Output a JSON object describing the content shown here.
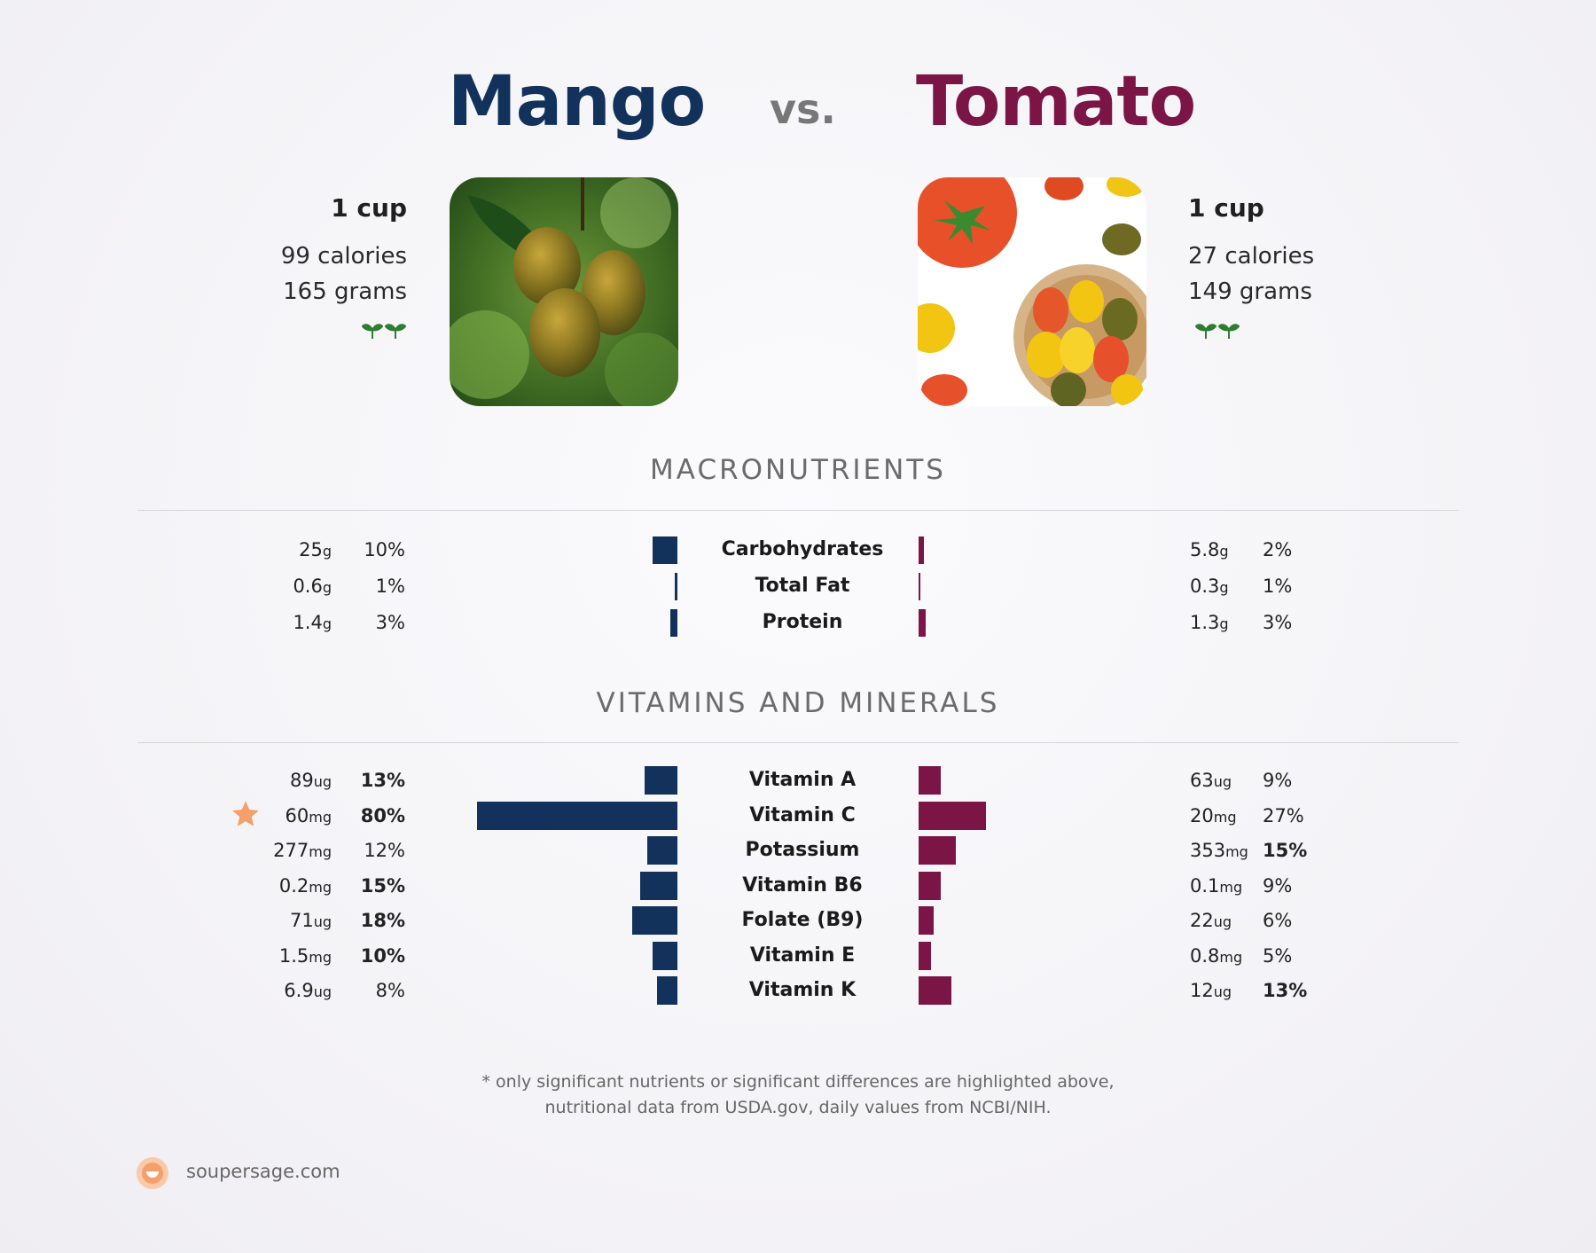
{
  "header": {
    "left_title": "Mango",
    "vs": "vs.",
    "right_title": "Tomato"
  },
  "left_food": {
    "serving": "1 cup",
    "calories": "99 calories",
    "grams": "165 grams",
    "icon": "plant-sprouts-icon"
  },
  "right_food": {
    "serving": "1 cup",
    "calories": "27 calories",
    "grams": "149 grams",
    "icon": "plant-sprouts-icon"
  },
  "sections": {
    "macros": "MACRONUTRIENTS",
    "vitamins": "VITAMINS AND MINERALS"
  },
  "colors": {
    "mango": "#13325b",
    "tomato": "#7b1546",
    "star": "#f5a06a",
    "sprout": "#2e7d32"
  },
  "chart_data": {
    "type": "bar",
    "series": [
      {
        "name": "Mango"
      },
      {
        "name": "Tomato"
      }
    ],
    "macros": [
      {
        "name": "Carbohydrates",
        "left_val": "25",
        "left_unit": "g",
        "left_pct": "10%",
        "left_pct_num": 10,
        "left_bold": false,
        "right_val": "5.8",
        "right_unit": "g",
        "right_pct": "2%",
        "right_pct_num": 2,
        "right_bold": false
      },
      {
        "name": "Total Fat",
        "left_val": "0.6",
        "left_unit": "g",
        "left_pct": "1%",
        "left_pct_num": 1,
        "left_bold": false,
        "right_val": "0.3",
        "right_unit": "g",
        "right_pct": "1%",
        "right_pct_num": 0.5,
        "right_bold": false
      },
      {
        "name": "Protein",
        "left_val": "1.4",
        "left_unit": "g",
        "left_pct": "3%",
        "left_pct_num": 3,
        "left_bold": false,
        "right_val": "1.3",
        "right_unit": "g",
        "right_pct": "3%",
        "right_pct_num": 3,
        "right_bold": false
      }
    ],
    "vitamins": [
      {
        "name": "Vitamin A",
        "left_val": "89",
        "left_unit": "ug",
        "left_pct": "13%",
        "left_pct_num": 13,
        "left_bold": true,
        "right_val": "63",
        "right_unit": "ug",
        "right_pct": "9%",
        "right_pct_num": 9,
        "right_bold": false
      },
      {
        "name": "Vitamin C",
        "left_val": "60",
        "left_unit": "mg",
        "left_pct": "80%",
        "left_pct_num": 80,
        "left_bold": true,
        "right_val": "20",
        "right_unit": "mg",
        "right_pct": "27%",
        "right_pct_num": 27,
        "right_bold": false,
        "star": true
      },
      {
        "name": "Potassium",
        "left_val": "277",
        "left_unit": "mg",
        "left_pct": "12%",
        "left_pct_num": 12,
        "left_bold": false,
        "right_val": "353",
        "right_unit": "mg",
        "right_pct": "15%",
        "right_pct_num": 15,
        "right_bold": true
      },
      {
        "name": "Vitamin B6",
        "left_val": "0.2",
        "left_unit": "mg",
        "left_pct": "15%",
        "left_pct_num": 15,
        "left_bold": true,
        "right_val": "0.1",
        "right_unit": "mg",
        "right_pct": "9%",
        "right_pct_num": 9,
        "right_bold": false
      },
      {
        "name": "Folate (B9)",
        "left_val": "71",
        "left_unit": "ug",
        "left_pct": "18%",
        "left_pct_num": 18,
        "left_bold": true,
        "right_val": "22",
        "right_unit": "ug",
        "right_pct": "6%",
        "right_pct_num": 6,
        "right_bold": false
      },
      {
        "name": "Vitamin E",
        "left_val": "1.5",
        "left_unit": "mg",
        "left_pct": "10%",
        "left_pct_num": 10,
        "left_bold": true,
        "right_val": "0.8",
        "right_unit": "mg",
        "right_pct": "5%",
        "right_pct_num": 5,
        "right_bold": false
      },
      {
        "name": "Vitamin K",
        "left_val": "6.9",
        "left_unit": "ug",
        "left_pct": "8%",
        "left_pct_num": 8,
        "left_bold": false,
        "right_val": "12",
        "right_unit": "ug",
        "right_pct": "13%",
        "right_pct_num": 13,
        "right_bold": true
      }
    ]
  },
  "footnote": {
    "line1": "* only significant nutrients or significant differences are highlighted above,",
    "line2": "nutritional data from USDA.gov, daily values from NCBI/NIH."
  },
  "brand": {
    "text": "soupersage.com",
    "icon": "soupersage-logo-icon"
  }
}
